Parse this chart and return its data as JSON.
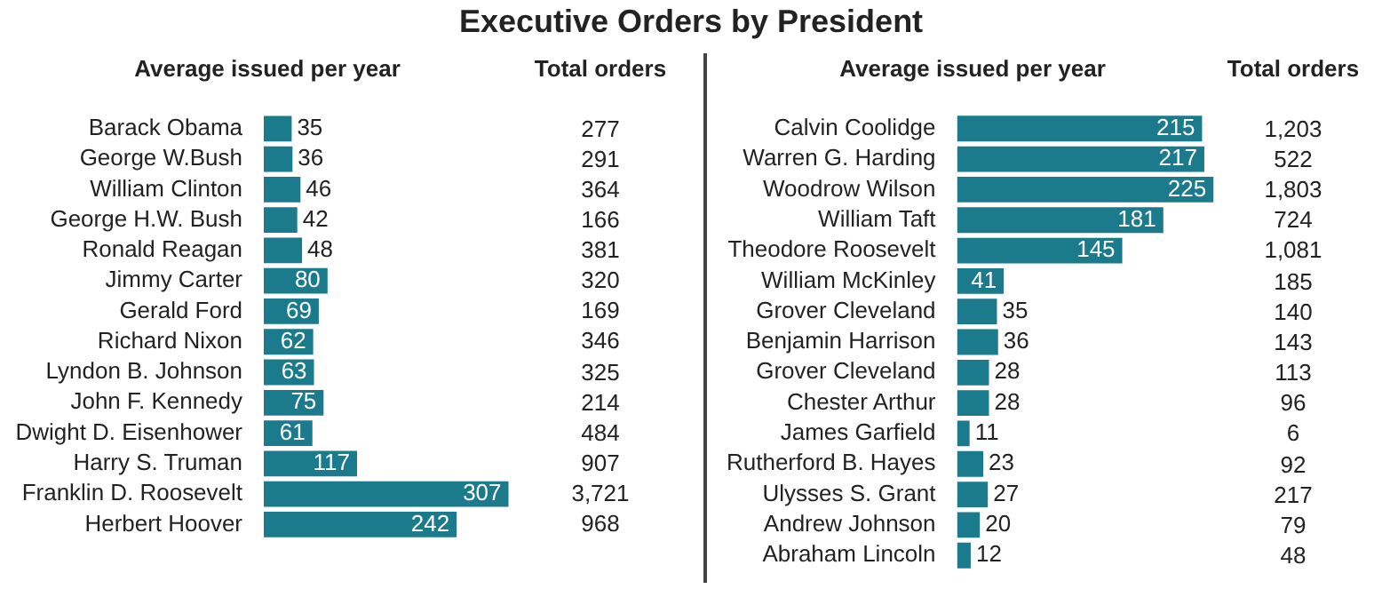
{
  "chart_data": [
    {
      "type": "bar",
      "title": "Executive Orders by President",
      "subtitle": "Average issued per year",
      "orientation": "horizontal",
      "tick_labels": "y",
      "data_labels": true,
      "color": "#1b7a8c",
      "categories": [
        "Barack Obama",
        "George W.Bush",
        "William Clinton",
        "George H.W. Bush",
        "Ronald Reagan",
        "Jimmy Carter",
        "Gerald Ford",
        "Richard Nixon",
        "Lyndon B. Johnson",
        "John F. Kennedy",
        "Dwight D. Eisenhower",
        "Harry S. Truman",
        "Franklin D. Roosevelt",
        "Herbert Hoover"
      ],
      "values": [
        35,
        36,
        46,
        42,
        48,
        80,
        69,
        62,
        63,
        75,
        61,
        117,
        307,
        242
      ]
    },
    {
      "type": "other",
      "title": "Total orders",
      "annotations": [
        "277",
        "291",
        "364",
        "166",
        "381",
        "320",
        "169",
        "346",
        "325",
        "214",
        "484",
        "907",
        "3,721",
        "968"
      ]
    },
    {
      "type": "bar",
      "subtitle": "Average issued per year",
      "orientation": "horizontal",
      "tick_labels": "y",
      "data_labels": true,
      "color": "#1b7a8c",
      "categories": [
        "Calvin Coolidge",
        "Warren G. Harding",
        "Woodrow Wilson",
        "William Taft",
        "Theodore Roosevelt",
        "William McKinley",
        "Grover Cleveland",
        "Benjamin Harrison",
        "Grover Cleveland",
        "Chester Arthur",
        "James Garfield",
        "Rutherford B. Hayes",
        "Ulysses S. Grant",
        "Andrew Johnson",
        "Abraham Lincoln"
      ],
      "values": [
        215,
        217,
        225,
        181,
        145,
        41,
        35,
        36,
        28,
        28,
        11,
        23,
        27,
        20,
        12
      ]
    },
    {
      "type": "other",
      "title": "Total orders",
      "annotations": [
        "1,203",
        "522",
        "1,803",
        "724",
        "1,081",
        "185",
        "140",
        "143",
        "113",
        "96",
        "6",
        "92",
        "217",
        "79",
        "48"
      ]
    }
  ]
}
